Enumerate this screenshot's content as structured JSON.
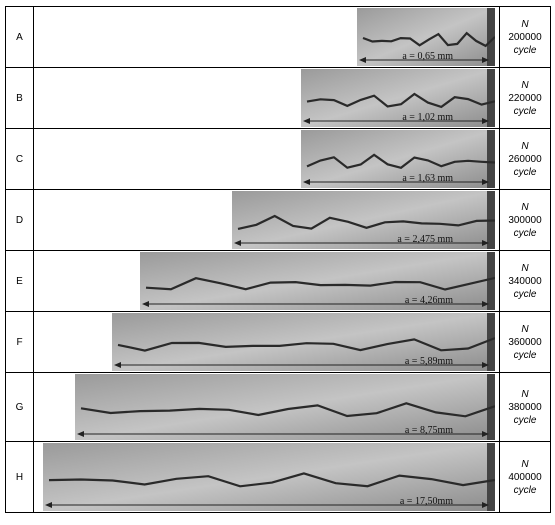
{
  "rows": [
    {
      "label": "A",
      "n": "N",
      "cycles": "200000",
      "unit": "cycle",
      "measure": "a = 0,65 mm",
      "fill": 0.3
    },
    {
      "label": "B",
      "n": "N",
      "cycles": "220000",
      "unit": "cycle",
      "measure": "a = 1,02 mm",
      "fill": 0.42
    },
    {
      "label": "C",
      "n": "N",
      "cycles": "260000",
      "unit": "cycle",
      "measure": "a = 1,63 mm",
      "fill": 0.42
    },
    {
      "label": "D",
      "n": "N",
      "cycles": "300000",
      "unit": "cycle",
      "measure": "a = 2,475 mm",
      "fill": 0.57
    },
    {
      "label": "E",
      "n": "N",
      "cycles": "340000",
      "unit": "cycle",
      "measure": "a = 4,26mm",
      "fill": 0.77
    },
    {
      "label": "F",
      "n": "N",
      "cycles": "360000",
      "unit": "cycle",
      "measure": "a = 5,89mm",
      "fill": 0.83
    },
    {
      "label": "G",
      "n": "N",
      "cycles": "380000",
      "unit": "cycle",
      "measure": "a = 8,75mm",
      "fill": 0.91
    },
    {
      "label": "H",
      "n": "N",
      "cycles": "400000",
      "unit": "cycle",
      "measure": "a = 17,50mm",
      "fill": 0.98
    }
  ]
}
